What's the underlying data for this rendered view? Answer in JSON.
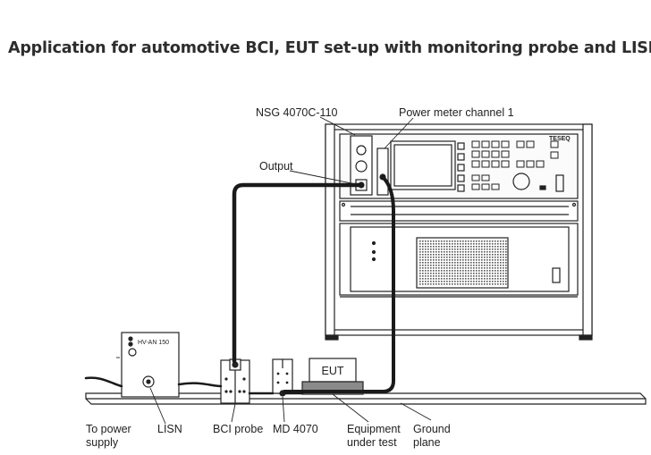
{
  "title": "Application for automotive BCI, EUT set-up with monitoring probe and LISN",
  "labels": {
    "nsg": "NSG 4070C-110",
    "power_meter": "Power meter channel 1",
    "output": "Output",
    "to_power_supply_1": "To power",
    "to_power_supply_2": "supply",
    "lisn": "LISN",
    "bci_probe": "BCI probe",
    "md4070": "MD 4070",
    "eut_under_1": "Equipment",
    "eut_under_2": "under test",
    "ground_1": "Ground",
    "ground_2": "plane"
  },
  "devices": {
    "lisn_model": "HV-AN 150",
    "eut_box": "EUT",
    "brand": "TESEQ"
  },
  "colors": {
    "line": "#222222",
    "cable": "#1a1a1a",
    "panel_fill": "#f4f4f4",
    "eut_fill": "#8a8a8a"
  }
}
